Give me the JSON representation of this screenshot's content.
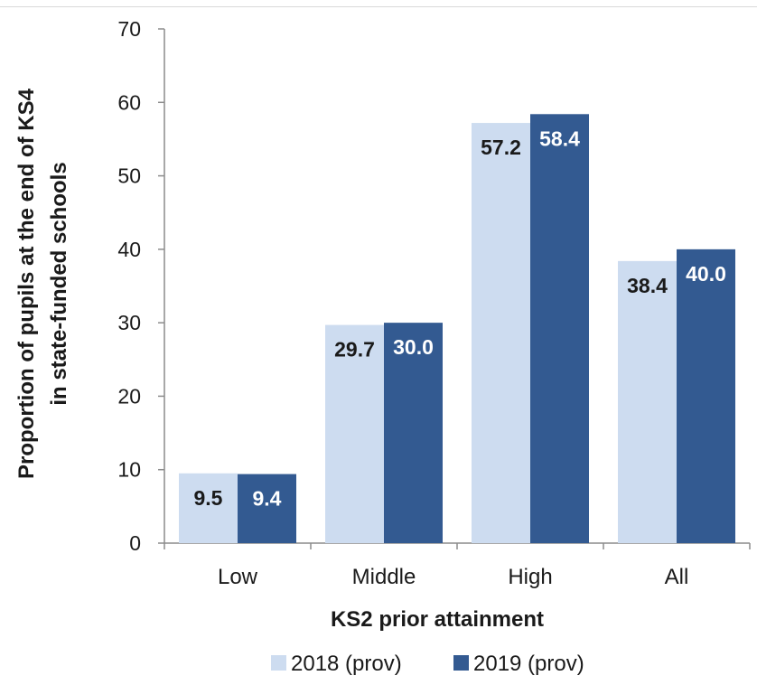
{
  "chart_data": {
    "type": "bar",
    "categories": [
      "Low",
      "Middle",
      "High",
      "All"
    ],
    "series": [
      {
        "name": "2018 (prov)",
        "values": [
          9.5,
          29.7,
          57.2,
          38.4
        ],
        "color": "#cddcf0",
        "label_color": "#1a1a1a"
      },
      {
        "name": "2019 (prov)",
        "values": [
          9.4,
          30.0,
          58.4,
          40.0
        ],
        "color": "#335a91",
        "label_color": "#ffffff"
      }
    ],
    "data_labels": [
      [
        "9.5",
        "29.7",
        "57.2",
        "38.4"
      ],
      [
        "9.4",
        "30.0",
        "58.4",
        "40.0"
      ]
    ],
    "xlabel": "KS2 prior attainment",
    "ylabel_lines": [
      "Proportion of pupils at the end of KS4",
      "in state-funded schools"
    ],
    "ylim": [
      0,
      70
    ],
    "yticks": [
      "0",
      "10",
      "20",
      "30",
      "40",
      "50",
      "60",
      "70"
    ],
    "grid": false,
    "legend_position": "bottom"
  }
}
